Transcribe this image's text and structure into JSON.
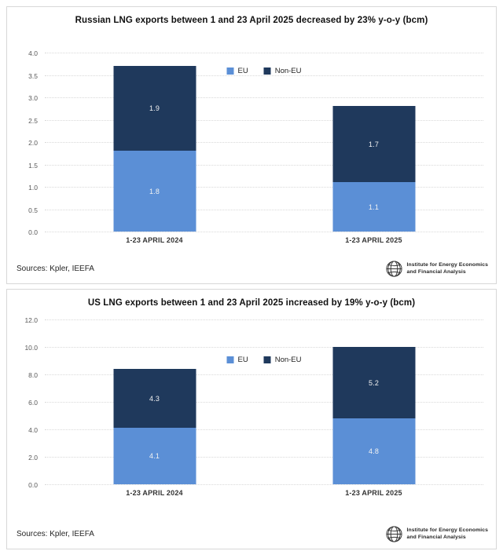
{
  "colors": {
    "eu": "#5B8FD6",
    "non_eu": "#1F395C",
    "gridline": "#d9d9d9",
    "panel_border": "#d8d8d8"
  },
  "footer": {
    "sources": "Sources: Kpler, IEEFA",
    "logo_line1": "Institute for Energy Economics",
    "logo_line2": "and Financial Analysis"
  },
  "chart_data": [
    {
      "type": "bar",
      "stacked": true,
      "title": "Russian LNG exports between 1 and 23 April 2025 decreased by 23% y-o-y (bcm)",
      "categories": [
        "1-23 APRIL 2024",
        "1-23 APRIL 2025"
      ],
      "series": [
        {
          "name": "EU",
          "color": "#5B8FD6",
          "values": [
            1.8,
            1.1
          ]
        },
        {
          "name": "Non-EU",
          "color": "#1F395C",
          "values": [
            1.9,
            1.7
          ]
        }
      ],
      "totals": [
        3.7,
        2.8
      ],
      "ylim": [
        0,
        4.0
      ],
      "yticks": [
        4.0,
        3.5,
        3.0,
        2.5,
        2.0,
        1.5,
        1.0,
        0.5,
        0.0
      ],
      "grid": true,
      "legend_position": "inside-top-center",
      "xlabel": "",
      "ylabel": ""
    },
    {
      "type": "bar",
      "stacked": true,
      "title": "US LNG exports between 1 and 23 April 2025 increased by 19% y-o-y (bcm)",
      "categories": [
        "1-23 APRIL 2024",
        "1-23 APRIL 2025"
      ],
      "series": [
        {
          "name": "EU",
          "color": "#5B8FD6",
          "values": [
            4.1,
            4.8
          ]
        },
        {
          "name": "Non-EU",
          "color": "#1F395C",
          "values": [
            4.3,
            5.2
          ]
        }
      ],
      "totals": [
        8.4,
        10.0
      ],
      "ylim": [
        0,
        12.0
      ],
      "yticks": [
        12.0,
        10.0,
        8.0,
        6.0,
        4.0,
        2.0,
        0.0
      ],
      "grid": true,
      "legend_position": "inside-upper-center",
      "xlabel": "",
      "ylabel": ""
    }
  ]
}
